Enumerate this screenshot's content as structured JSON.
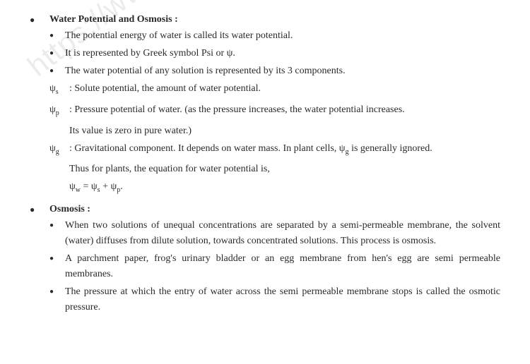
{
  "doc": {
    "watermark": "https://www.stu",
    "section1": {
      "heading": "Water Potential and Osmosis :",
      "bullets": [
        "The potential energy of water is called its water potential.",
        "It is represented by Greek symbol Psi or ψ.",
        "The water potential of any solution is represented by its 3 components."
      ],
      "defs": {
        "psi_s_sym": "ψ",
        "psi_s_sub": "s",
        "psi_s_text": ": Solute potential, the amount of water potential.",
        "psi_p_sym": "ψ",
        "psi_p_sub": "p",
        "psi_p_text1": ": Pressure potential of water. (as the pressure increases, the water potential increases.",
        "psi_p_text2": "Its value is zero in pure water.)",
        "psi_g_sym": "ψ",
        "psi_g_sub": "g",
        "psi_g_text1a": ": Gravitational component. It depends on water mass. In plant cells, ψ",
        "psi_g_text1b": " is generally ignored.",
        "psi_g_text2": "Thus for plants, the equation for water potential is,",
        "equation": "ψw = ψs + ψp."
      }
    },
    "section2": {
      "heading": "Osmosis  :",
      "bullets": [
        "When two solutions of unequal concentrations are separated by a semi-permeable membrane, the solvent (water) diffuses from dilute solution, towards concentrated solutions. This process is osmosis.",
        "A parchment paper, frog's urinary bladder or an egg membrane from hen's egg are semi permeable membranes.",
        "The pressure at which the entry of water across the semi permeable membrane stops is called the osmotic pressure."
      ]
    }
  }
}
